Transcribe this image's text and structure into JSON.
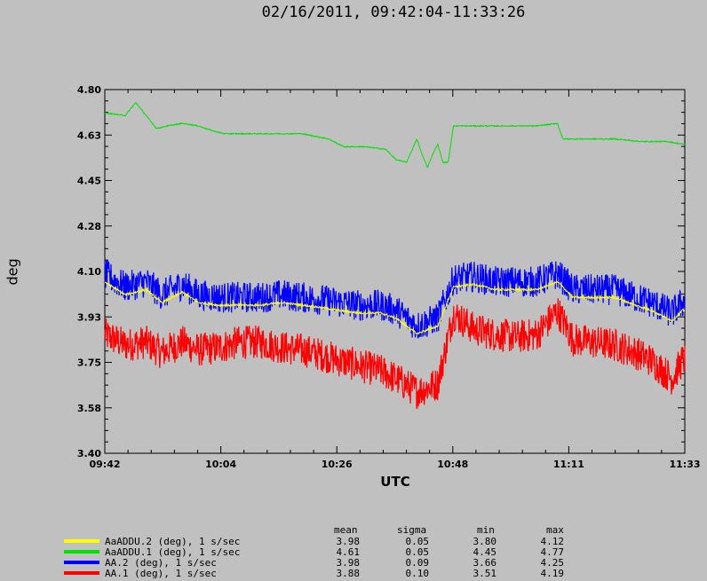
{
  "title": "02/16/2011, 09:42:04-11:33:26",
  "chart_data": {
    "type": "line",
    "title": "02/16/2011, 09:42:04-11:33:26",
    "xlabel": "UTC",
    "ylabel": "deg",
    "x_ticks": [
      "09:42",
      "10:04",
      "10:26",
      "10:48",
      "11:11",
      "11:33"
    ],
    "y_ticks": [
      "4.80",
      "4.63",
      "4.45",
      "4.28",
      "4.10",
      "3.93",
      "3.75",
      "3.58",
      "3.40"
    ],
    "ylim": [
      3.4,
      4.8
    ],
    "xlim": [
      "09:42:04",
      "11:33:26"
    ],
    "grid": false,
    "series": [
      {
        "name": "AaADDU.2 (deg), 1 s/sec",
        "color": "#ffff00",
        "x": [
          "09:42",
          "09:46",
          "09:50",
          "09:53",
          "09:57",
          "10:00",
          "10:04",
          "10:08",
          "10:12",
          "10:16",
          "10:20",
          "10:24",
          "10:27",
          "10:31",
          "10:35",
          "10:38",
          "10:42",
          "10:46",
          "10:49",
          "10:53",
          "10:57",
          "11:01",
          "11:05",
          "11:09",
          "11:12",
          "11:16",
          "11:20",
          "11:24",
          "11:27",
          "11:31",
          "11:33"
        ],
        "values": [
          4.06,
          4.01,
          4.03,
          3.98,
          4.02,
          3.98,
          3.97,
          3.97,
          3.97,
          3.98,
          3.97,
          3.96,
          3.95,
          3.94,
          3.94,
          3.92,
          3.86,
          3.89,
          4.04,
          4.05,
          4.03,
          4.03,
          4.03,
          4.06,
          4.0,
          4.0,
          4.0,
          3.97,
          3.95,
          3.91,
          3.95
        ],
        "stats": {
          "mean": "3.98",
          "sigma": "0.05",
          "min": "3.80",
          "max": "4.12"
        }
      },
      {
        "name": "AaADDU.1 (deg), 1 s/sec",
        "color": "#00e000",
        "x": [
          "09:42",
          "09:46",
          "09:48",
          "09:50",
          "09:52",
          "09:54",
          "09:57",
          "10:00",
          "10:03",
          "10:05",
          "10:10",
          "10:15",
          "10:20",
          "10:25",
          "10:28",
          "10:32",
          "10:36",
          "10:38",
          "10:40",
          "10:42",
          "10:43",
          "10:44",
          "10:45",
          "10:46",
          "10:47",
          "10:48",
          "10:49",
          "10:52",
          "10:58",
          "11:05",
          "11:09",
          "11:10",
          "11:15",
          "11:20",
          "11:25",
          "11:30",
          "11:33"
        ],
        "values": [
          4.71,
          4.7,
          4.75,
          4.7,
          4.65,
          4.66,
          4.67,
          4.66,
          4.64,
          4.63,
          4.63,
          4.63,
          4.63,
          4.61,
          4.58,
          4.58,
          4.57,
          4.53,
          4.52,
          4.61,
          4.55,
          4.5,
          4.55,
          4.59,
          4.52,
          4.52,
          4.66,
          4.66,
          4.66,
          4.66,
          4.67,
          4.61,
          4.61,
          4.61,
          4.6,
          4.6,
          4.59
        ],
        "stats": {
          "mean": "4.61",
          "sigma": "0.05",
          "min": "4.45",
          "max": "4.77"
        }
      },
      {
        "name": "AA.2 (deg), 1 s/sec",
        "color": "#0000ff",
        "x": [
          "09:42",
          "09:46",
          "09:50",
          "09:53",
          "09:57",
          "10:00",
          "10:04",
          "10:08",
          "10:12",
          "10:16",
          "10:20",
          "10:24",
          "10:27",
          "10:31",
          "10:35",
          "10:38",
          "10:42",
          "10:46",
          "10:49",
          "10:53",
          "10:57",
          "11:01",
          "11:05",
          "11:09",
          "11:12",
          "11:16",
          "11:20",
          "11:24",
          "11:27",
          "11:31",
          "11:33"
        ],
        "values": [
          4.06,
          4.01,
          4.03,
          3.98,
          4.02,
          3.98,
          3.97,
          3.97,
          3.97,
          3.98,
          3.97,
          3.96,
          3.95,
          3.94,
          3.94,
          3.92,
          3.86,
          3.89,
          4.04,
          4.05,
          4.03,
          4.03,
          4.03,
          4.06,
          4.0,
          4.0,
          4.0,
          3.97,
          3.95,
          3.91,
          3.95
        ],
        "stats": {
          "mean": "3.98",
          "sigma": "0.09",
          "min": "3.66",
          "max": "4.25"
        }
      },
      {
        "name": "AA.1 (deg), 1 s/sec",
        "color": "#ff0000",
        "x": [
          "09:42",
          "09:46",
          "09:50",
          "09:53",
          "09:57",
          "10:00",
          "10:04",
          "10:08",
          "10:12",
          "10:16",
          "10:20",
          "10:24",
          "10:27",
          "10:31",
          "10:35",
          "10:38",
          "10:42",
          "10:46",
          "10:49",
          "10:53",
          "10:57",
          "11:01",
          "11:05",
          "11:09",
          "11:12",
          "11:16",
          "11:20",
          "11:24",
          "11:27",
          "11:31",
          "11:33"
        ],
        "values": [
          3.89,
          3.85,
          3.86,
          3.82,
          3.86,
          3.83,
          3.84,
          3.86,
          3.86,
          3.84,
          3.83,
          3.81,
          3.79,
          3.77,
          3.75,
          3.72,
          3.67,
          3.7,
          3.97,
          3.91,
          3.89,
          3.88,
          3.89,
          3.98,
          3.87,
          3.86,
          3.85,
          3.82,
          3.79,
          3.72,
          3.79
        ],
        "stats": {
          "mean": "3.88",
          "sigma": "0.10",
          "min": "3.51",
          "max": "4.19"
        }
      }
    ]
  },
  "legend": {
    "headers": {
      "mean": "mean",
      "sigma": "sigma",
      "min": "min",
      "max": "max"
    }
  }
}
